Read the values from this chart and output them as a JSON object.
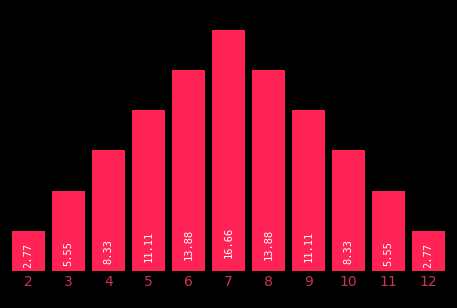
{
  "categories": [
    2,
    3,
    4,
    5,
    6,
    7,
    8,
    9,
    10,
    11,
    12
  ],
  "values": [
    2.77,
    5.55,
    8.33,
    11.11,
    13.88,
    16.66,
    13.88,
    11.11,
    8.33,
    5.55,
    2.77
  ],
  "bar_color": "#FF2255",
  "background_color": "#000000",
  "text_color": "#ffffff",
  "label_color": "#cc3355",
  "bar_width": 0.82,
  "value_fontsize": 7.5,
  "xlabel_fontsize": 10,
  "ylim_max": 18.5
}
